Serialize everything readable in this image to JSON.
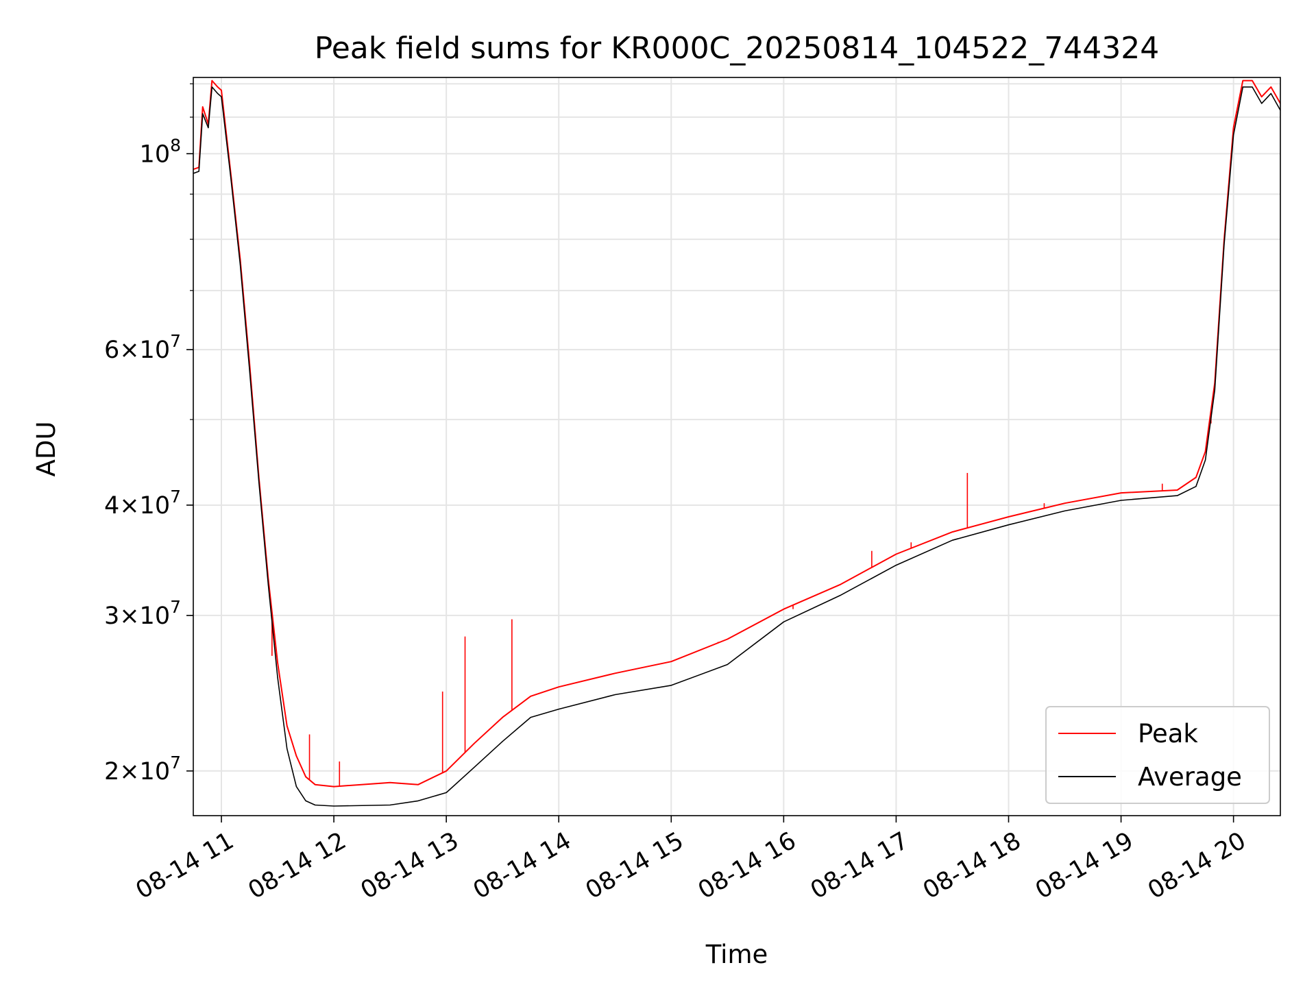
{
  "chart_data": {
    "type": "line",
    "title": "Peak field sums for KR000C_20250814_104522_744324",
    "xlabel": "Time",
    "ylabel": "ADU",
    "yscale": "log",
    "ylim": [
      17800000,
      122000000
    ],
    "xlim": [
      "2025-08-14 10:45",
      "2025-08-14 20:25"
    ],
    "x_ticks": [
      "08-14 11",
      "08-14 12",
      "08-14 13",
      "08-14 14",
      "08-14 15",
      "08-14 16",
      "08-14 17",
      "08-14 18",
      "08-14 19",
      "08-14 20"
    ],
    "y_ticks": [
      {
        "value": 20000000,
        "mantissa": "2",
        "exponent": "7"
      },
      {
        "value": 30000000,
        "mantissa": "3",
        "exponent": "7"
      },
      {
        "value": 40000000,
        "mantissa": "4",
        "exponent": "7"
      },
      {
        "value": 60000000,
        "mantissa": "6",
        "exponent": "7"
      },
      {
        "value": 100000000,
        "mantissa": "",
        "exponent": "8"
      }
    ],
    "grid": true,
    "legend_position": "lower-right",
    "series": [
      {
        "name": "Peak",
        "color": "#ff0000",
        "points": [
          [
            "10:45",
            96000000
          ],
          [
            "10:48",
            96500000
          ],
          [
            "10:50",
            113000000
          ],
          [
            "10:53",
            108000000
          ],
          [
            "10:55",
            121000000
          ],
          [
            "10:58",
            119000000
          ],
          [
            "11:00",
            118000000
          ],
          [
            "11:05",
            95000000
          ],
          [
            "11:10",
            76000000
          ],
          [
            "11:15",
            58000000
          ],
          [
            "11:20",
            43000000
          ],
          [
            "11:25",
            33000000
          ],
          [
            "11:30",
            26500000
          ],
          [
            "11:35",
            22500000
          ],
          [
            "11:40",
            20800000
          ],
          [
            "11:45",
            19700000
          ],
          [
            "11:50",
            19300000
          ],
          [
            "12:00",
            19200000
          ],
          [
            "12:30",
            19400000
          ],
          [
            "12:45",
            19300000
          ],
          [
            "13:00",
            20000000
          ],
          [
            "13:15",
            21500000
          ],
          [
            "13:30",
            23000000
          ],
          [
            "13:45",
            24300000
          ],
          [
            "14:00",
            24900000
          ],
          [
            "14:30",
            25800000
          ],
          [
            "15:00",
            26600000
          ],
          [
            "15:30",
            28200000
          ],
          [
            "16:00",
            30500000
          ],
          [
            "16:30",
            32500000
          ],
          [
            "17:00",
            35200000
          ],
          [
            "17:30",
            37300000
          ],
          [
            "18:00",
            38800000
          ],
          [
            "18:30",
            40200000
          ],
          [
            "19:00",
            41300000
          ],
          [
            "19:30",
            41600000
          ],
          [
            "19:40",
            43000000
          ],
          [
            "19:45",
            46000000
          ],
          [
            "19:50",
            55000000
          ],
          [
            "19:55",
            80000000
          ],
          [
            "20:00",
            107000000
          ],
          [
            "20:05",
            121000000
          ],
          [
            "20:10",
            121000000
          ],
          [
            "20:15",
            116000000
          ],
          [
            "20:20",
            119000000
          ],
          [
            "20:25",
            114000000
          ]
        ],
        "spikes": [
          [
            "11:27",
            27000000
          ],
          [
            "11:47",
            22000000
          ],
          [
            "12:03",
            20500000
          ],
          [
            "12:58",
            24600000
          ],
          [
            "13:10",
            28400000
          ],
          [
            "13:35",
            29700000
          ],
          [
            "15:25",
            28000000
          ],
          [
            "16:05",
            30500000
          ],
          [
            "16:47",
            35500000
          ],
          [
            "17:08",
            36300000
          ],
          [
            "17:38",
            43500000
          ],
          [
            "18:19",
            40200000
          ],
          [
            "19:22",
            42300000
          ],
          [
            "19:48",
            49500000
          ]
        ]
      },
      {
        "name": "Average",
        "color": "#000000",
        "points": [
          [
            "10:45",
            95000000
          ],
          [
            "10:48",
            95500000
          ],
          [
            "10:50",
            111000000
          ],
          [
            "10:53",
            107000000
          ],
          [
            "10:55",
            119000000
          ],
          [
            "10:58",
            117000000
          ],
          [
            "11:00",
            116000000
          ],
          [
            "11:05",
            94000000
          ],
          [
            "11:10",
            75000000
          ],
          [
            "11:15",
            57000000
          ],
          [
            "11:20",
            42500000
          ],
          [
            "11:25",
            32500000
          ],
          [
            "11:30",
            25500000
          ],
          [
            "11:35",
            21200000
          ],
          [
            "11:40",
            19200000
          ],
          [
            "11:45",
            18500000
          ],
          [
            "11:50",
            18300000
          ],
          [
            "12:00",
            18250000
          ],
          [
            "12:30",
            18300000
          ],
          [
            "12:45",
            18500000
          ],
          [
            "13:00",
            18900000
          ],
          [
            "13:15",
            20200000
          ],
          [
            "13:30",
            21600000
          ],
          [
            "13:45",
            23000000
          ],
          [
            "14:00",
            23500000
          ],
          [
            "14:30",
            24400000
          ],
          [
            "15:00",
            25000000
          ],
          [
            "15:30",
            26400000
          ],
          [
            "16:00",
            29500000
          ],
          [
            "16:30",
            31600000
          ],
          [
            "17:00",
            34200000
          ],
          [
            "17:30",
            36500000
          ],
          [
            "18:00",
            38000000
          ],
          [
            "18:30",
            39400000
          ],
          [
            "19:00",
            40500000
          ],
          [
            "19:30",
            41000000
          ],
          [
            "19:40",
            42000000
          ],
          [
            "19:45",
            45000000
          ],
          [
            "19:50",
            54000000
          ],
          [
            "19:55",
            79000000
          ],
          [
            "20:00",
            105000000
          ],
          [
            "20:05",
            119000000
          ],
          [
            "20:10",
            119000000
          ],
          [
            "20:15",
            114000000
          ],
          [
            "20:20",
            117000000
          ],
          [
            "20:25",
            112000000
          ]
        ]
      }
    ]
  }
}
